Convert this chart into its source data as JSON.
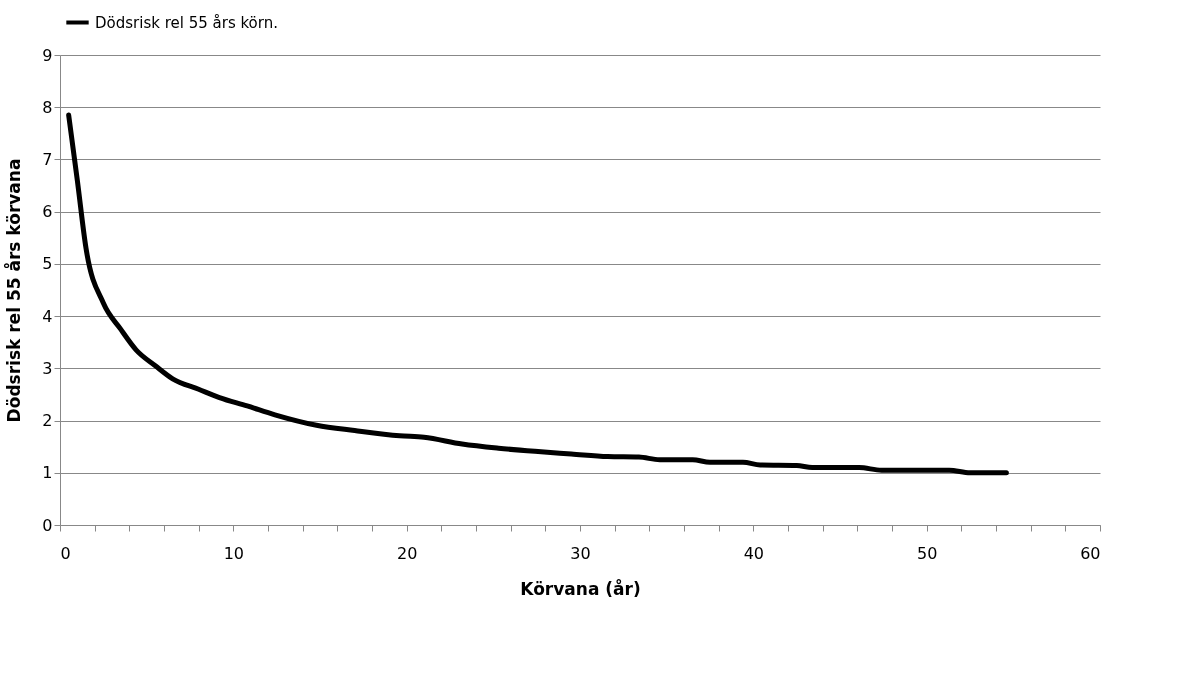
{
  "chart_data": {
    "type": "line",
    "xlabel": "Körvana (år)",
    "ylabel": "Dödsrisk rel 55 års körvana",
    "x": [
      0.5,
      1.0,
      1.5,
      2.5,
      3.5,
      4.4,
      5.5,
      6.5,
      8,
      9.2,
      10.8,
      12.4,
      14.8,
      17,
      19.6,
      21,
      23.2,
      25.3,
      27.4,
      29.5,
      31.6,
      33.4,
      34.6,
      36.5,
      37.5,
      39.4,
      40.4,
      42.5,
      43.4,
      46.1,
      47.4,
      51.3,
      52.5,
      54.6
    ],
    "series": [
      {
        "name": "Dödsrisk rel 55 års körn.",
        "color": "#000000",
        "values": [
          7.85,
          6.6,
          5.3,
          4.25,
          3.75,
          3.35,
          3.05,
          2.8,
          2.6,
          2.44,
          2.28,
          2.11,
          1.91,
          1.81,
          1.71,
          1.68,
          1.55,
          1.47,
          1.41,
          1.36,
          1.31,
          1.3,
          1.25,
          1.25,
          1.2,
          1.2,
          1.15,
          1.14,
          1.1,
          1.1,
          1.05,
          1.05,
          1.0,
          1.0
        ]
      }
    ],
    "xlim": [
      0,
      60
    ],
    "xticks": [
      0,
      {
        "value": 2,
        "label": null
      },
      {
        "value": 4,
        "label": null
      },
      {
        "value": 6,
        "label": null
      },
      {
        "value": 8,
        "label": null
      },
      10,
      {
        "value": 12,
        "label": null
      },
      {
        "value": 14,
        "label": null
      },
      {
        "value": 16,
        "label": null
      },
      {
        "value": 18,
        "label": null
      },
      20,
      {
        "value": 22,
        "label": null
      },
      {
        "value": 24,
        "label": null
      },
      {
        "value": 26,
        "label": null
      },
      {
        "value": 28,
        "label": null
      },
      30,
      {
        "value": 32,
        "label": null
      },
      {
        "value": 34,
        "label": null
      },
      {
        "value": 36,
        "label": null
      },
      {
        "value": 38,
        "label": null
      },
      40,
      {
        "value": 42,
        "label": null
      },
      {
        "value": 44,
        "label": null
      },
      {
        "value": 46,
        "label": null
      },
      {
        "value": 48,
        "label": null
      },
      50,
      {
        "value": 52,
        "label": null
      },
      {
        "value": 54,
        "label": null
      },
      {
        "value": 56,
        "label": null
      },
      {
        "value": 58,
        "label": null
      },
      60
    ],
    "ylim": [
      0,
      9
    ],
    "yticks": [
      0,
      1,
      2,
      3,
      4,
      5,
      6,
      7,
      8,
      9
    ],
    "grid": "y",
    "legend": "top",
    "marker": "none",
    "line_style": "solid"
  }
}
